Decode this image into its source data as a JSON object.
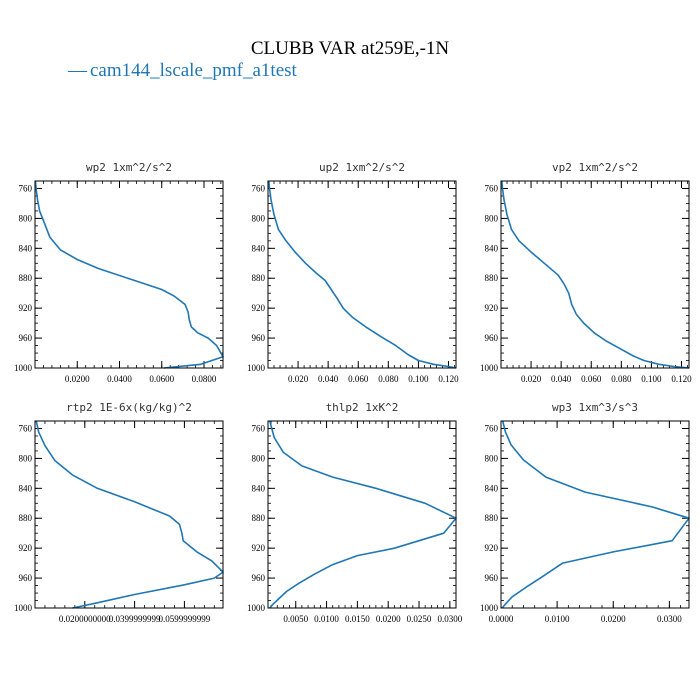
{
  "figure": {
    "title": "CLUBB VAR at259E,-1N",
    "legend_label": "cam144_lscale_pmf_a1test",
    "legend_marker": "—",
    "line_color": "#1f77b4"
  },
  "chart_data": [
    {
      "type": "line",
      "title": "wp2   1xm^2/s^2",
      "ylim": [
        1000,
        750
      ],
      "yticks": [
        760,
        800,
        840,
        880,
        920,
        960,
        1000
      ],
      "xlim": [
        0.0,
        0.089
      ],
      "xticks": [
        0.02,
        0.04,
        0.06,
        0.08
      ],
      "xtick_labels": [
        "0.0200",
        "0.0400",
        "0.0600",
        "0.0800"
      ],
      "series": [
        {
          "name": "cam144_lscale_pmf_a1test",
          "x": [
            0.0002,
            0.0005,
            0.0012,
            0.0022,
            0.004,
            0.007,
            0.012,
            0.02,
            0.03,
            0.045,
            0.06,
            0.066,
            0.071,
            0.0725,
            0.073,
            0.074,
            0.077,
            0.082,
            0.086,
            0.089,
            0.0785,
            0.061
          ],
          "y": [
            750,
            760,
            775,
            790,
            803,
            825,
            842,
            855,
            867,
            881,
            895,
            904,
            915,
            925,
            935,
            945,
            953,
            960,
            970,
            985,
            995,
            1000
          ]
        }
      ]
    },
    {
      "type": "line",
      "title": "up2   1xm^2/s^2",
      "ylim": [
        1000,
        750
      ],
      "yticks": [
        760,
        800,
        840,
        880,
        920,
        960,
        1000
      ],
      "xlim": [
        0.0,
        0.125
      ],
      "xticks": [
        0.02,
        0.04,
        0.06,
        0.08,
        0.1,
        0.12
      ],
      "xtick_labels": [
        "0.020",
        "0.040",
        "0.060",
        "0.080",
        "0.100",
        "0.120"
      ],
      "series": [
        {
          "name": "cam144_lscale_pmf_a1test",
          "x": [
            0.0005,
            0.001,
            0.002,
            0.004,
            0.007,
            0.012,
            0.018,
            0.025,
            0.032,
            0.038,
            0.042,
            0.046,
            0.05,
            0.056,
            0.065,
            0.075,
            0.085,
            0.093,
            0.1,
            0.11,
            0.12,
            0.125
          ],
          "y": [
            750,
            760,
            775,
            795,
            815,
            830,
            845,
            860,
            873,
            883,
            895,
            907,
            920,
            932,
            945,
            958,
            970,
            982,
            990,
            995,
            998,
            1000
          ]
        }
      ]
    },
    {
      "type": "line",
      "title": "vp2   1xm^2/s^2",
      "ylim": [
        1000,
        750
      ],
      "yticks": [
        760,
        800,
        840,
        880,
        920,
        960,
        1000
      ],
      "xlim": [
        0.0,
        0.125
      ],
      "xticks": [
        0.02,
        0.04,
        0.06,
        0.08,
        0.1,
        0.12
      ],
      "xtick_labels": [
        "0.020",
        "0.040",
        "0.060",
        "0.080",
        "0.100",
        "0.120"
      ],
      "series": [
        {
          "name": "cam144_lscale_pmf_a1test",
          "x": [
            0.0005,
            0.001,
            0.002,
            0.004,
            0.007,
            0.012,
            0.02,
            0.03,
            0.038,
            0.042,
            0.045,
            0.047,
            0.05,
            0.055,
            0.062,
            0.07,
            0.08,
            0.088,
            0.095,
            0.105,
            0.115,
            0.125
          ],
          "y": [
            750,
            760,
            775,
            795,
            815,
            830,
            845,
            862,
            876,
            888,
            900,
            915,
            928,
            940,
            953,
            964,
            975,
            984,
            990,
            995,
            998,
            1000
          ]
        }
      ]
    },
    {
      "type": "line",
      "title": "rtp2   1E-6x(kg/kg)^2",
      "ylim": [
        1000,
        750
      ],
      "yticks": [
        760,
        800,
        840,
        880,
        920,
        960,
        1000
      ],
      "xlim": [
        0.0,
        0.0755
      ],
      "xticks": [
        0.02,
        0.04,
        0.06
      ],
      "xtick_labels": [
        "0.0200000000",
        "0.0399999999",
        "0.0599999999"
      ],
      "series": [
        {
          "name": "cam144_lscale_pmf_a1test",
          "x": [
            0.0005,
            0.0015,
            0.004,
            0.008,
            0.015,
            0.025,
            0.04,
            0.054,
            0.058,
            0.059,
            0.0595,
            0.065,
            0.071,
            0.0755,
            0.072,
            0.06,
            0.04,
            0.025,
            0.018,
            0.015
          ],
          "y": [
            750,
            765,
            783,
            803,
            822,
            840,
            858,
            877,
            888,
            900,
            910,
            925,
            937,
            952,
            960,
            969,
            982,
            993,
            998,
            1000
          ]
        }
      ]
    },
    {
      "type": "line",
      "title": "thlp2   1xK^2",
      "ylim": [
        1000,
        750
      ],
      "yticks": [
        760,
        800,
        840,
        880,
        920,
        960,
        1000
      ],
      "xlim": [
        0.0005,
        0.031
      ],
      "xticks": [
        0.005,
        0.01,
        0.015,
        0.02,
        0.025,
        0.03
      ],
      "xtick_labels": [
        "0.0050",
        "0.0100",
        "0.0150",
        "0.0200",
        "0.0250",
        "0.0300"
      ],
      "series": [
        {
          "name": "cam144_lscale_pmf_a1test",
          "x": [
            0.0008,
            0.0015,
            0.003,
            0.006,
            0.011,
            0.018,
            0.026,
            0.031,
            0.029,
            0.021,
            0.015,
            0.011,
            0.008,
            0.0055,
            0.0035,
            0.0022,
            0.0013,
            0.0008
          ],
          "y": [
            750,
            772,
            792,
            810,
            825,
            840,
            860,
            880,
            900,
            920,
            930,
            942,
            955,
            967,
            978,
            988,
            995,
            1000
          ]
        }
      ]
    },
    {
      "type": "line",
      "title": "wp3   1xm^3/s^3",
      "ylim": [
        1000,
        750
      ],
      "yticks": [
        760,
        800,
        840,
        880,
        920,
        960,
        1000
      ],
      "xlim": [
        0.0,
        0.0335
      ],
      "xticks": [
        0.0,
        0.01,
        0.02,
        0.03
      ],
      "xtick_labels": [
        "0.0000",
        "0.0100",
        "0.0200",
        "0.0300"
      ],
      "series": [
        {
          "name": "cam144_lscale_pmf_a1test",
          "x": [
            0.0003,
            0.0008,
            0.0018,
            0.004,
            0.008,
            0.015,
            0.027,
            0.0335,
            0.0305,
            0.02,
            0.011,
            0.007,
            0.0045,
            0.002,
            0.001,
            0.0002
          ],
          "y": [
            750,
            765,
            782,
            802,
            825,
            845,
            865,
            880,
            910,
            925,
            940,
            960,
            972,
            985,
            993,
            1000
          ]
        }
      ]
    }
  ]
}
